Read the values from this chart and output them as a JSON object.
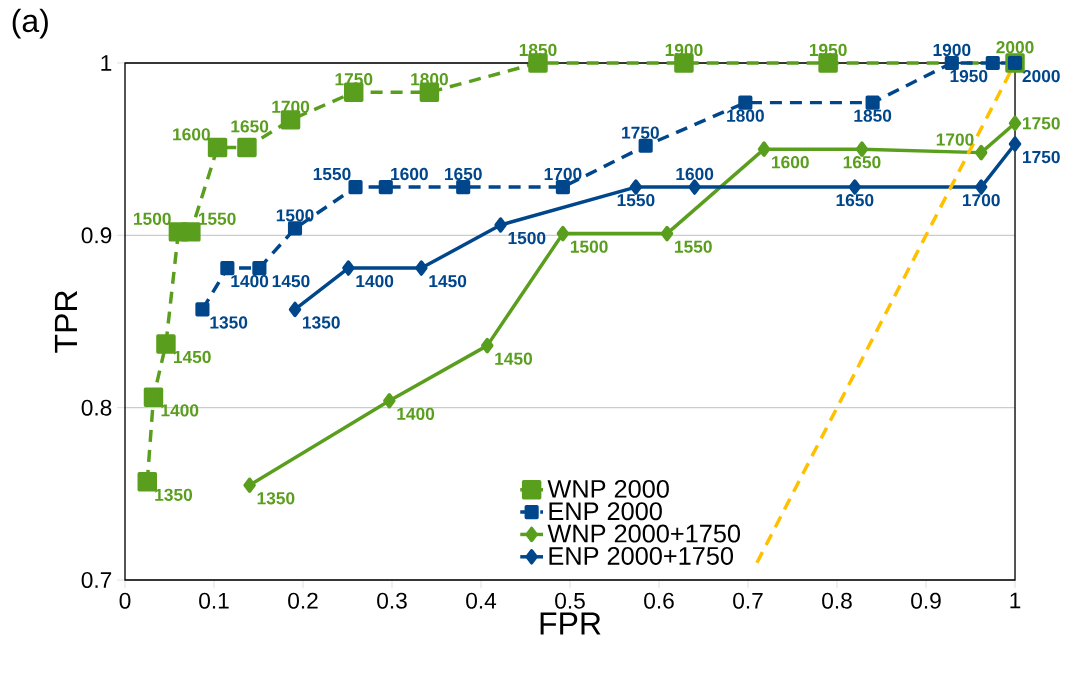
{
  "chart_data": {
    "type": "line",
    "xlabel": "FPR",
    "ylabel": "TPR",
    "annotations": [
      "(a)",
      {
        "text": "1350",
        "x": 0.025,
        "y": 0.757
      },
      {
        "text": "1400",
        "x": 0.032,
        "y": 0.806
      },
      {
        "text": "1450",
        "x": 0.046,
        "y": 0.837
      },
      {
        "text": "1500",
        "x": 0.06,
        "y": 0.902
      },
      {
        "text": "1550",
        "x": 0.074,
        "y": 0.902
      },
      {
        "text": "1600",
        "x": 0.104,
        "y": 0.951
      },
      {
        "text": "1650",
        "x": 0.137,
        "y": 0.951
      },
      {
        "text": "1700",
        "x": 0.186,
        "y": 0.967
      },
      {
        "text": "1750",
        "x": 0.257,
        "y": 0.983
      },
      {
        "text": "1800",
        "x": 0.342,
        "y": 0.983
      },
      {
        "text": "1850",
        "x": 0.464,
        "y": 1.0
      },
      {
        "text": "1900",
        "x": 0.628,
        "y": 1.0
      },
      {
        "text": "1950",
        "x": 0.79,
        "y": 1.0
      },
      {
        "text": "2000",
        "x": 1.0,
        "y": 1.0
      },
      {
        "text": "1350",
        "x": 0.087,
        "y": 0.857
      },
      {
        "text": "1400",
        "x": 0.115,
        "y": 0.881
      },
      {
        "text": "1450",
        "x": 0.151,
        "y": 0.881
      },
      {
        "text": "1500",
        "x": 0.191,
        "y": 0.904
      },
      {
        "text": "1550",
        "x": 0.259,
        "y": 0.928
      },
      {
        "text": "1600",
        "x": 0.293,
        "y": 0.928
      },
      {
        "text": "1650",
        "x": 0.38,
        "y": 0.928
      },
      {
        "text": "1700",
        "x": 0.492,
        "y": 0.928
      },
      {
        "text": "1750",
        "x": 0.585,
        "y": 0.952
      },
      {
        "text": "1800",
        "x": 0.697,
        "y": 0.977
      },
      {
        "text": "1850",
        "x": 0.84,
        "y": 0.977
      },
      {
        "text": "1900",
        "x": 0.929,
        "y": 1.0
      },
      {
        "text": "1950",
        "x": 0.975,
        "y": 1.0
      },
      {
        "text": "2000",
        "x": 1.0,
        "y": 1.0
      },
      {
        "text": "1350",
        "x": 0.14,
        "y": 0.755
      },
      {
        "text": "1400",
        "x": 0.297,
        "y": 0.804
      },
      {
        "text": "1450",
        "x": 0.407,
        "y": 0.836
      },
      {
        "text": "1500",
        "x": 0.492,
        "y": 0.901
      },
      {
        "text": "1550",
        "x": 0.609,
        "y": 0.901
      },
      {
        "text": "1600",
        "x": 0.718,
        "y": 0.95
      },
      {
        "text": "1650",
        "x": 0.828,
        "y": 0.95
      },
      {
        "text": "1700",
        "x": 0.962,
        "y": 0.948
      },
      {
        "text": "1750",
        "x": 1.0,
        "y": 0.965
      },
      {
        "text": "1350",
        "x": 0.191,
        "y": 0.857
      },
      {
        "text": "1400",
        "x": 0.251,
        "y": 0.881
      },
      {
        "text": "1450",
        "x": 0.333,
        "y": 0.881
      },
      {
        "text": "1500",
        "x": 0.422,
        "y": 0.906
      },
      {
        "text": "1550",
        "x": 0.574,
        "y": 0.928
      },
      {
        "text": "1600",
        "x": 0.64,
        "y": 0.928
      },
      {
        "text": "1650",
        "x": 0.82,
        "y": 0.928
      },
      {
        "text": "1700",
        "x": 0.962,
        "y": 0.928
      },
      {
        "text": "1750",
        "x": 1.0,
        "y": 0.953
      }
    ],
    "xlim": [
      0,
      1
    ],
    "ylim": [
      0.7,
      1
    ],
    "xticks": [
      0,
      0.1,
      0.2,
      0.3,
      0.4,
      0.5,
      0.6,
      0.7,
      0.8,
      0.9,
      1
    ],
    "yticks": [
      0.7,
      0.8,
      0.9,
      1
    ],
    "grid": "y",
    "legend": "bottom right",
    "series": [
      {
        "name": "WNP 2000",
        "color": "#5a9e1e",
        "line_style": "dashed",
        "marker": "square",
        "x": [
          0.025,
          0.032,
          0.046,
          0.06,
          0.074,
          0.104,
          0.137,
          0.186,
          0.257,
          0.342,
          0.464,
          0.628,
          0.79,
          1.0
        ],
        "values": [
          0.757,
          0.806,
          0.837,
          0.902,
          0.902,
          0.951,
          0.951,
          0.967,
          0.983,
          0.983,
          1.0,
          1.0,
          1.0,
          1.0
        ]
      },
      {
        "name": "ENP 2000",
        "color": "#00468b",
        "line_style": "dashed",
        "marker": "square",
        "x": [
          0.087,
          0.115,
          0.151,
          0.191,
          0.259,
          0.293,
          0.38,
          0.492,
          0.585,
          0.697,
          0.84,
          0.929,
          0.975,
          1.0
        ],
        "values": [
          0.857,
          0.881,
          0.881,
          0.904,
          0.928,
          0.928,
          0.928,
          0.928,
          0.952,
          0.977,
          0.977,
          1.0,
          1.0,
          1.0
        ]
      },
      {
        "name": "WNP 2000+1750",
        "color": "#5a9e1e",
        "line_style": "solid",
        "marker": "diamond",
        "x": [
          0.14,
          0.297,
          0.407,
          0.492,
          0.609,
          0.718,
          0.828,
          0.962,
          1.0
        ],
        "values": [
          0.755,
          0.804,
          0.836,
          0.901,
          0.901,
          0.95,
          0.95,
          0.948,
          0.965
        ]
      },
      {
        "name": "ENP 2000+1750",
        "color": "#00468b",
        "line_style": "solid",
        "marker": "diamond",
        "x": [
          0.191,
          0.251,
          0.333,
          0.422,
          0.574,
          0.64,
          0.82,
          0.962,
          1.0
        ],
        "values": [
          0.857,
          0.881,
          0.881,
          0.906,
          0.928,
          0.928,
          0.928,
          0.928,
          0.953
        ]
      },
      {
        "type": "line",
        "color": "#ffc000",
        "line_style": "dashed",
        "marker": "none",
        "x": [
          0.71,
          1.0
        ],
        "values": [
          0.71,
          1.0
        ]
      }
    ]
  }
}
